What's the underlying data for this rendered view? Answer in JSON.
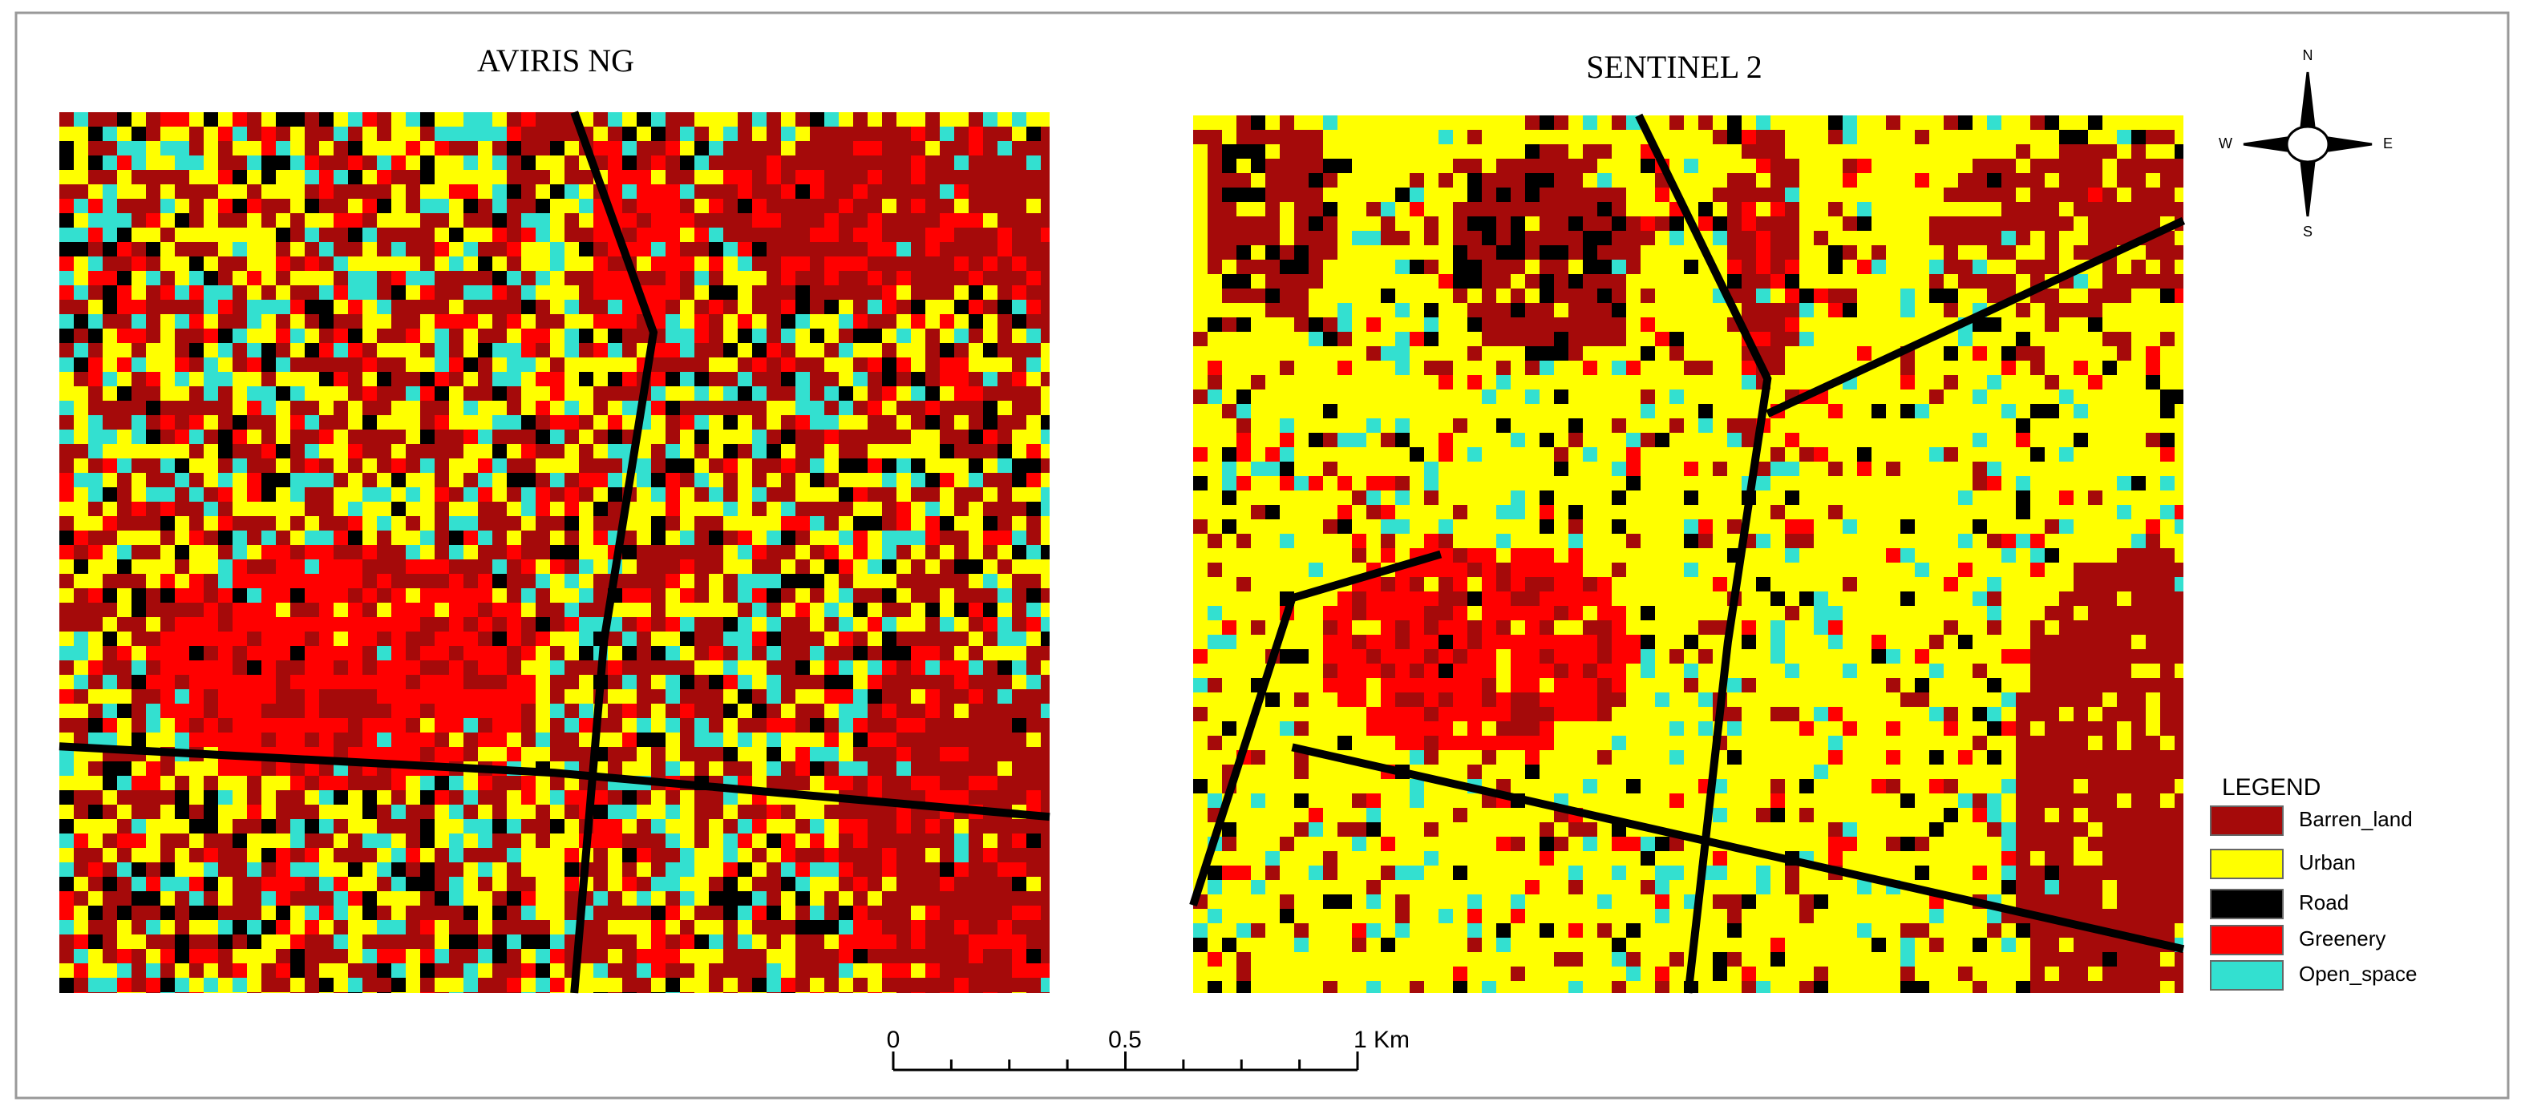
{
  "maps": [
    {
      "title": "AVIRIS NG"
    },
    {
      "title": "SENTINEL 2"
    }
  ],
  "compass": {
    "north": "N",
    "south": "S",
    "east": "E",
    "west": "W"
  },
  "legend": {
    "title": "LEGEND",
    "items": [
      {
        "label": "Barren_land",
        "color": "#a50a0a"
      },
      {
        "label": "Urban",
        "color": "#ffff00"
      },
      {
        "label": "Road",
        "color": "#000000"
      },
      {
        "label": "Greenery",
        "color": "#ff0000"
      },
      {
        "label": "Open_space",
        "color": "#33e0d0"
      }
    ]
  },
  "scale_bar": {
    "labels": [
      "0",
      "0.5",
      "1 Km"
    ]
  }
}
